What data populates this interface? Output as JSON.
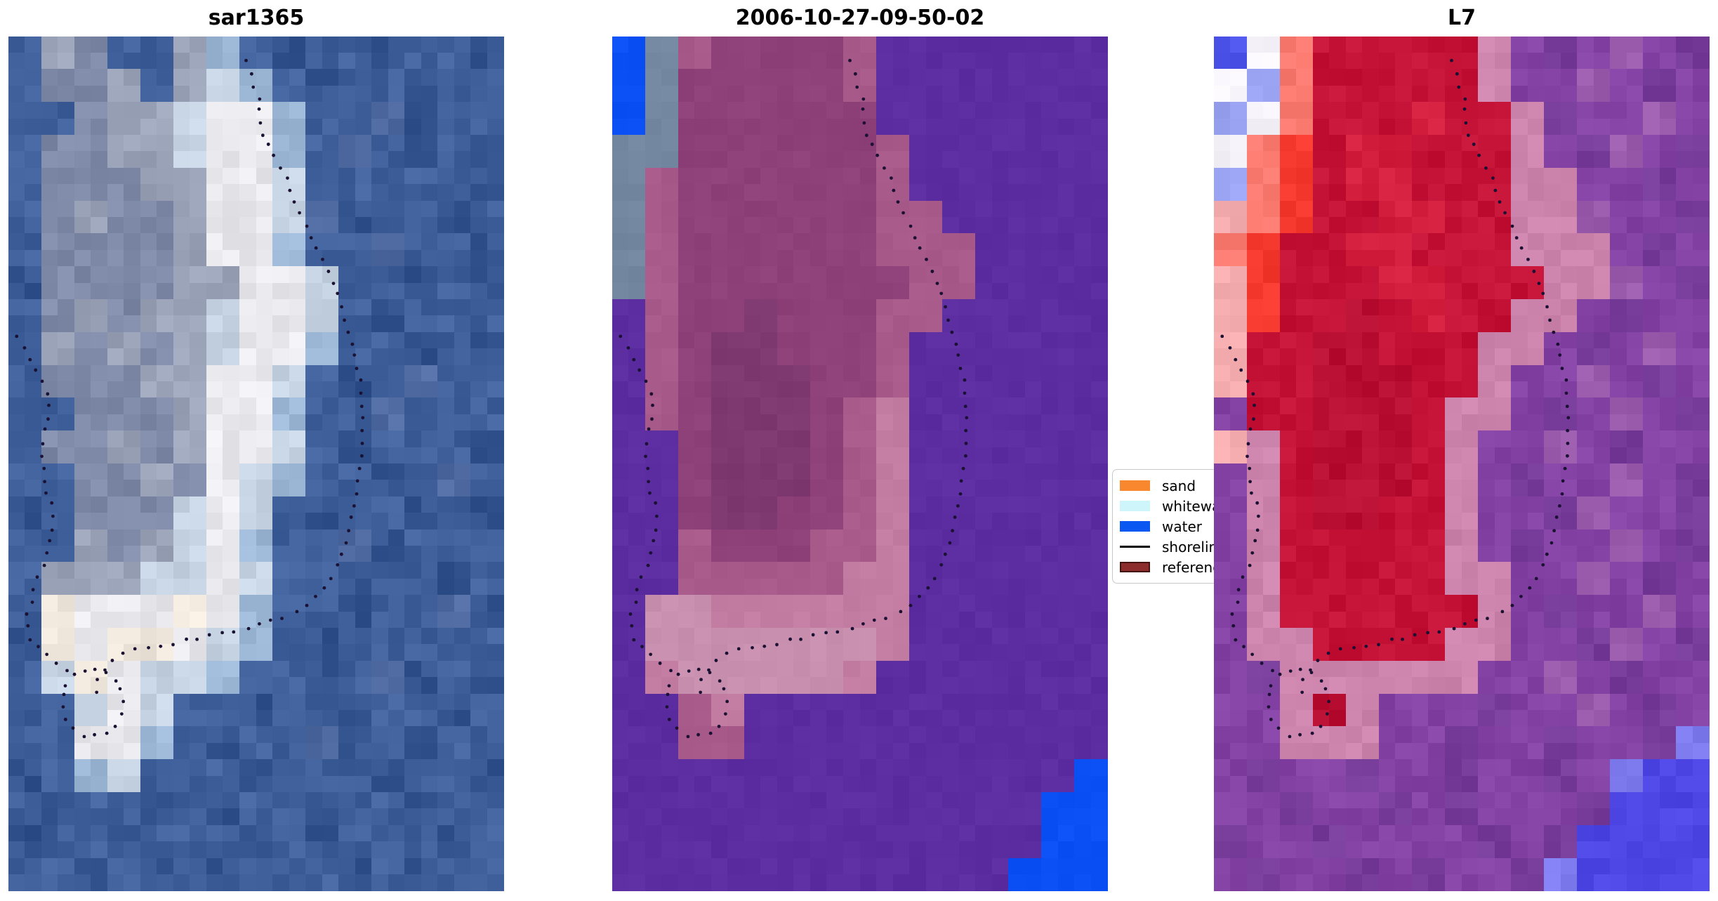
{
  "chart_data": {
    "type": "heatmap",
    "description": "Three co-registered satellite image panels of the same island with a dotted detected-shoreline overlay",
    "panels": [
      {
        "title": "sar1365",
        "noise": 12,
        "palette": {
          "D": "#33548f",
          "d": "#40619b",
          "e": "#4f6ba1",
          "C": "#7e8aa8",
          "c": "#9aa3b8",
          "s": "#c6d3e2",
          "b": "#9db8d6",
          "W": "#e9e9ee",
          "w": "#f0e7dc"
        },
        "pixel_grid": [
          "dcCddcbdDddDddD",
          "dCCcdcsbdDddDdd",
          "ddCccsWWbddeDdd",
          "dCCccsWWbdedDdD",
          "dCCCccWWsddDddD",
          "dCcCCcWWseDddDd",
          "dCCCCcWWbddeddD",
          "DCCCCccWWsddDdD",
          "dCcCccsWWsdDddd",
          "dcCcCcsWWbddDdD",
          "dCCCccWWsdDdedd",
          "DdCCCcWWbddeDdd",
          "dCCcCcWWsdDdddD",
          "ddCCcCWsbddDded",
          "DdCCCsWsdDddDdD",
          "ddcCcsWbddeDddd",
          "dcccssWsddDddDd",
          "dwWWWwWbddDddeD",
          "DwWwwWsbdDddddd",
          "dswWssbddDdeDdD",
          "DdsWsddDddDddDd",
          "ddWWbdDddeDdDdd",
          "DdbsdddDdddDddD",
          "dDddDdDddDddDdd",
          "DddDdddDdDdddDd",
          "ddDdDdDdddDdDdd"
        ]
      },
      {
        "title": "2006-10-27-09-50-02",
        "noise": 4,
        "palette": {
          "P": "#5b2da1",
          "B": "#0b50f5",
          "G": "#7487a0",
          "g": "#a7b4bd",
          "M": "#8e4078",
          "m": "#a85a8a",
          "K": "#7e3a70",
          "p": "#c47da2",
          "L": "#c890ae"
        },
        "pixel_grid": [
          "BGmMMMMmPPPPPPP",
          "BGMMMMMmPPPPPPP",
          "BGMMMMMMPPPPPPP",
          "GGMMMMMMmPPPPPP",
          "GmMMMMMMmPPPPPP",
          "GmMMMMMMmmPPPPP",
          "GmMMMMMMmmmPPPP",
          "GmMMMMMMMmmPPPP",
          "PmMMKMMMmmPPPPP",
          "PmMKKMMMmPPPPPP",
          "PmMKKKMMmPPPPPP",
          "PmMKKKMmpPPPPPP",
          "PPMKKKMmpPPPPPP",
          "PPMKKKMmpPPPPPP",
          "PPMKKMMmpPPPPPP",
          "PPmMMMmmpPPPPPP",
          "PPmmmmmppPPPPPP",
          "PLLppppppPPPPPP",
          "PLLLLLLLpPPPPPP",
          "PpLLLLLpPPPPPPP",
          "PPmpPPPPPPPPPPP",
          "PPmmPPPPPPPPPPP",
          "PPPPPPPPPPPPPPB",
          "PPPPPPPPPPPPPBB",
          "PPPPPPPPPPPPPBB",
          "PPPPPPPPPPPPBBB"
        ]
      },
      {
        "title": "L7",
        "noise": 9,
        "palette": {
          "U": "#8443a4",
          "u": "#773b99",
          "v": "#9c5cae",
          "R": "#c41237",
          "r": "#b90f33",
          "O": "#d41f3f",
          "k": "#cc84ad",
          "F": "#f5392e",
          "f": "#fb7a70",
          "N": "#f5adb0",
          "A": "#4b52e8",
          "W": "#f6f3fa",
          "a": "#9aa3f2",
          "T": "#4f46e6",
          "t": "#7f7cf0"
        },
        "pixel_grid": [
          "AWfRRRRRkUuUvUu",
          "WafRRRRRkUUvUuU",
          "aWfRRRORRkuUUvU",
          "WfFROORRRkUuvUu",
          "afFROORRRkkUUuU",
          "NfFRROORRkkvUUu",
          "fFRROORRRkkkUuU",
          "NFRRROORRRkkvUu",
          "NFRRrRORRkkUuUU",
          "NRRrrRRRkkUuUvU",
          "NRRrrrRRkUUvUuU",
          "URRrrrRkkUuUvUu",
          "NkRrrrRkUUvUuUU",
          "UkRrrrRkUuUUvUu",
          "UkRrrRRkUUuvUUu",
          "UkRRRRRkUuUUvUu",
          "UkRRRRRkkUUvUuU",
          "UkRRRRRRkUuUUvU",
          "UkkRRRRkkUUuvUu",
          "UukkkkkkUUvUuUU",
          "UUkrkUUUuUUvUuU",
          "UUkkkUUuUUuUUut",
          "UuUUuUUuUUuUtTT",
          "UUuUUuUuUUUuTTT",
          "uUUuUUUUuUuTTTT",
          "UuUUuUuUUutTTTT"
        ]
      }
    ],
    "shoreline": {
      "dot_color": "#1a1133",
      "dot_radius": 2.4,
      "dot_spacing": 18,
      "segments": [
        [
          [
            0.48,
            0.03
          ],
          [
            0.492,
            0.048
          ],
          [
            0.5,
            0.065
          ],
          [
            0.51,
            0.082
          ],
          [
            0.505,
            0.1
          ],
          [
            0.515,
            0.118
          ],
          [
            0.532,
            0.135
          ],
          [
            0.548,
            0.152
          ],
          [
            0.56,
            0.168
          ],
          [
            0.572,
            0.185
          ],
          [
            0.585,
            0.203
          ],
          [
            0.6,
            0.222
          ],
          [
            0.615,
            0.24
          ],
          [
            0.63,
            0.258
          ],
          [
            0.645,
            0.276
          ],
          [
            0.66,
            0.295
          ],
          [
            0.673,
            0.315
          ],
          [
            0.684,
            0.335
          ],
          [
            0.693,
            0.356
          ],
          [
            0.701,
            0.378
          ],
          [
            0.708,
            0.4
          ],
          [
            0.713,
            0.422
          ],
          [
            0.716,
            0.445
          ],
          [
            0.714,
            0.468
          ],
          [
            0.711,
            0.49
          ],
          [
            0.707,
            0.512
          ],
          [
            0.702,
            0.534
          ],
          [
            0.697,
            0.556
          ],
          [
            0.69,
            0.578
          ],
          [
            0.68,
            0.598
          ],
          [
            0.666,
            0.617
          ],
          [
            0.649,
            0.635
          ],
          [
            0.628,
            0.651
          ],
          [
            0.604,
            0.664
          ],
          [
            0.578,
            0.674
          ],
          [
            0.55,
            0.681
          ],
          [
            0.52,
            0.687
          ],
          [
            0.49,
            0.692
          ],
          [
            0.458,
            0.696
          ],
          [
            0.426,
            0.7
          ],
          [
            0.394,
            0.703
          ],
          [
            0.362,
            0.706
          ],
          [
            0.33,
            0.71
          ],
          [
            0.298,
            0.713
          ],
          [
            0.266,
            0.717
          ],
          [
            0.236,
            0.722
          ],
          [
            0.21,
            0.729
          ],
          [
            0.193,
            0.74
          ],
          [
            0.182,
            0.754
          ],
          [
            0.176,
            0.768
          ]
        ],
        [
          [
            0.118,
            0.742
          ],
          [
            0.105,
            0.735
          ],
          [
            0.093,
            0.727
          ],
          [
            0.07,
            0.721
          ],
          [
            0.051,
            0.712
          ],
          [
            0.039,
            0.702
          ],
          [
            0.037,
            0.689
          ],
          [
            0.038,
            0.676
          ],
          [
            0.044,
            0.663
          ],
          [
            0.051,
            0.651
          ],
          [
            0.057,
            0.64
          ],
          [
            0.064,
            0.628
          ],
          [
            0.071,
            0.616
          ],
          [
            0.077,
            0.604
          ],
          [
            0.081,
            0.592
          ],
          [
            0.084,
            0.58
          ],
          [
            0.086,
            0.568
          ],
          [
            0.088,
            0.556
          ],
          [
            0.089,
            0.544
          ],
          [
            0.072,
            0.531
          ],
          [
            0.07,
            0.518
          ],
          [
            0.071,
            0.505
          ],
          [
            0.069,
            0.492
          ],
          [
            0.071,
            0.479
          ],
          [
            0.074,
            0.466
          ],
          [
            0.077,
            0.453
          ],
          [
            0.08,
            0.441
          ],
          [
            0.082,
            0.429
          ],
          [
            0.079,
            0.417
          ],
          [
            0.07,
            0.405
          ],
          [
            0.058,
            0.395
          ],
          [
            0.046,
            0.385
          ],
          [
            0.035,
            0.373
          ],
          [
            0.026,
            0.361
          ],
          [
            0.018,
            0.35
          ],
          [
            0.011,
            0.339
          ]
        ]
      ],
      "blob_ellipse": {
        "cx": 0.17,
        "cy": 0.779,
        "rx": 0.062,
        "ry": 0.04,
        "n_dots": 17
      }
    },
    "legend_position": "center right"
  },
  "legend": {
    "entries": [
      {
        "label": "sand",
        "type": "patch",
        "color": "#f8872e"
      },
      {
        "label": "whitewater",
        "type": "patch",
        "color": "#cdf5fa"
      },
      {
        "label": "water",
        "type": "patch",
        "color": "#0b57f2"
      },
      {
        "label": "shoreline",
        "type": "line",
        "color": "#000000"
      },
      {
        "label": "reference",
        "type": "patch",
        "color": "#8c2c2c",
        "border": "#441410"
      }
    ]
  }
}
